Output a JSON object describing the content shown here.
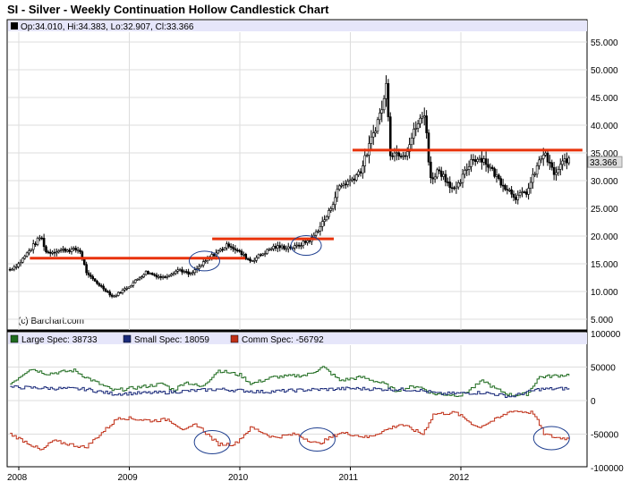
{
  "title": "SI - Silver - Weekly Continuation Hollow Candlestick Chart",
  "ohlc_label": "Op:34.010, Hi:34.383, Lo:32.907, Cl:33.366",
  "copyright": "(c) Barchart.com",
  "colors": {
    "candle": "#000000",
    "resistance": "#e8320a",
    "circle": "#1f3f8f",
    "large": "#1f6b1f",
    "small": "#1a2a7a",
    "comm": "#c03018",
    "legend_bg": "#e6e6fa"
  },
  "chart_data": [
    {
      "type": "candlestick",
      "title": "SI - Silver - Weekly Continuation Hollow Candlestick Chart",
      "x_ticks": [
        "2008",
        "2009",
        "2010",
        "2011",
        "2012"
      ],
      "y_ticks": [
        "5.000",
        "10.000",
        "15.000",
        "20.000",
        "25.000",
        "30.000",
        "35.000",
        "40.000",
        "45.000",
        "50.000",
        "55.000"
      ],
      "ylim": [
        5,
        55
      ],
      "last_value_label": "33.366",
      "grid": true,
      "close_path": [
        [
          2007.92,
          14
        ],
        [
          2008.0,
          15
        ],
        [
          2008.2,
          20
        ],
        [
          2008.25,
          17
        ],
        [
          2008.4,
          17.5
        ],
        [
          2008.55,
          17.5
        ],
        [
          2008.62,
          13
        ],
        [
          2008.8,
          10
        ],
        [
          2008.85,
          9
        ],
        [
          2009.0,
          11
        ],
        [
          2009.15,
          13.5
        ],
        [
          2009.3,
          12.5
        ],
        [
          2009.45,
          14
        ],
        [
          2009.55,
          13
        ],
        [
          2009.75,
          16.5
        ],
        [
          2009.9,
          18.5
        ],
        [
          2010.0,
          17
        ],
        [
          2010.1,
          15.5
        ],
        [
          2010.3,
          18
        ],
        [
          2010.5,
          18
        ],
        [
          2010.65,
          19.5
        ],
        [
          2010.8,
          24
        ],
        [
          2010.9,
          29
        ],
        [
          2011.0,
          30
        ],
        [
          2011.1,
          32
        ],
        [
          2011.3,
          44
        ],
        [
          2011.33,
          48
        ],
        [
          2011.36,
          35
        ],
        [
          2011.5,
          35
        ],
        [
          2011.6,
          40
        ],
        [
          2011.68,
          42
        ],
        [
          2011.72,
          30
        ],
        [
          2011.8,
          32
        ],
        [
          2011.95,
          28
        ],
        [
          2012.1,
          34
        ],
        [
          2012.2,
          34
        ],
        [
          2012.35,
          30
        ],
        [
          2012.5,
          27
        ],
        [
          2012.6,
          28
        ],
        [
          2012.7,
          33
        ],
        [
          2012.75,
          35
        ],
        [
          2012.85,
          31
        ],
        [
          2012.95,
          34
        ],
        [
          2012.98,
          33.366
        ]
      ],
      "last_bar": {
        "open": 34.01,
        "high": 34.383,
        "low": 32.907,
        "close": 33.366
      },
      "resistance_lines": [
        {
          "from": 2008.1,
          "to": 2010.05,
          "level": 16
        },
        {
          "from": 2009.75,
          "to": 2010.85,
          "level": 19.5
        },
        {
          "from": 2011.02,
          "to": 2013.1,
          "level": 35.5
        }
      ],
      "circled": [
        [
          2009.68,
          15.5
        ],
        [
          2010.6,
          18.3
        ]
      ]
    },
    {
      "type": "line",
      "y_ticks": [
        "100000",
        "50000",
        "0",
        "-50000",
        "-100000"
      ],
      "ylim": [
        -100000,
        100000
      ],
      "grid": true,
      "legend_placement": "top-left",
      "series": [
        {
          "name": "Large Spec",
          "label": "Large Spec: 38733",
          "points": [
            [
              2007.92,
              25000
            ],
            [
              2008.1,
              48000
            ],
            [
              2008.25,
              40000
            ],
            [
              2008.5,
              45000
            ],
            [
              2008.6,
              35000
            ],
            [
              2008.85,
              15000
            ],
            [
              2009.0,
              18000
            ],
            [
              2009.3,
              25000
            ],
            [
              2009.4,
              15000
            ],
            [
              2009.5,
              28000
            ],
            [
              2009.65,
              20000
            ],
            [
              2009.8,
              45000
            ],
            [
              2010.0,
              38000
            ],
            [
              2010.1,
              25000
            ],
            [
              2010.3,
              35000
            ],
            [
              2010.6,
              38000
            ],
            [
              2010.75,
              50000
            ],
            [
              2010.9,
              30000
            ],
            [
              2011.1,
              35000
            ],
            [
              2011.3,
              25000
            ],
            [
              2011.4,
              15000
            ],
            [
              2011.6,
              22000
            ],
            [
              2011.75,
              10000
            ],
            [
              2012.0,
              8000
            ],
            [
              2012.2,
              30000
            ],
            [
              2012.3,
              18000
            ],
            [
              2012.45,
              8000
            ],
            [
              2012.6,
              10000
            ],
            [
              2012.7,
              35000
            ],
            [
              2012.98,
              38733
            ]
          ]
        },
        {
          "name": "Small Spec",
          "label": "Small Spec: 18059",
          "points": [
            [
              2007.92,
              20000
            ],
            [
              2008.6,
              17000
            ],
            [
              2008.85,
              10000
            ],
            [
              2009.3,
              12000
            ],
            [
              2009.8,
              17000
            ],
            [
              2010.2,
              13000
            ],
            [
              2010.6,
              16000
            ],
            [
              2011.0,
              18000
            ],
            [
              2011.6,
              16000
            ],
            [
              2011.8,
              10000
            ],
            [
              2012.2,
              12000
            ],
            [
              2012.45,
              6000
            ],
            [
              2012.7,
              17000
            ],
            [
              2012.98,
              18059
            ]
          ]
        },
        {
          "name": "Comm Spec",
          "label": "Comm Spec: -56792",
          "points": [
            [
              2007.92,
              -50000
            ],
            [
              2008.1,
              -65000
            ],
            [
              2008.2,
              -75000
            ],
            [
              2008.3,
              -60000
            ],
            [
              2008.6,
              -70000
            ],
            [
              2008.8,
              -40000
            ],
            [
              2008.9,
              -25000
            ],
            [
              2009.2,
              -30000
            ],
            [
              2009.35,
              -28000
            ],
            [
              2009.5,
              -45000
            ],
            [
              2009.6,
              -35000
            ],
            [
              2009.8,
              -65000
            ],
            [
              2009.95,
              -65000
            ],
            [
              2010.1,
              -40000
            ],
            [
              2010.3,
              -55000
            ],
            [
              2010.5,
              -50000
            ],
            [
              2010.7,
              -65000
            ],
            [
              2010.9,
              -48000
            ],
            [
              2011.0,
              -50000
            ],
            [
              2011.15,
              -55000
            ],
            [
              2011.45,
              -35000
            ],
            [
              2011.65,
              -50000
            ],
            [
              2011.75,
              -20000
            ],
            [
              2011.95,
              -18000
            ],
            [
              2012.15,
              -40000
            ],
            [
              2012.35,
              -25000
            ],
            [
              2012.45,
              -15000
            ],
            [
              2012.65,
              -18000
            ],
            [
              2012.75,
              -50000
            ],
            [
              2012.85,
              -55000
            ],
            [
              2012.98,
              -56792
            ]
          ]
        }
      ],
      "circled": [
        [
          2009.75,
          -62000
        ],
        [
          2010.7,
          -58000
        ],
        [
          2012.82,
          -56000
        ]
      ]
    }
  ]
}
